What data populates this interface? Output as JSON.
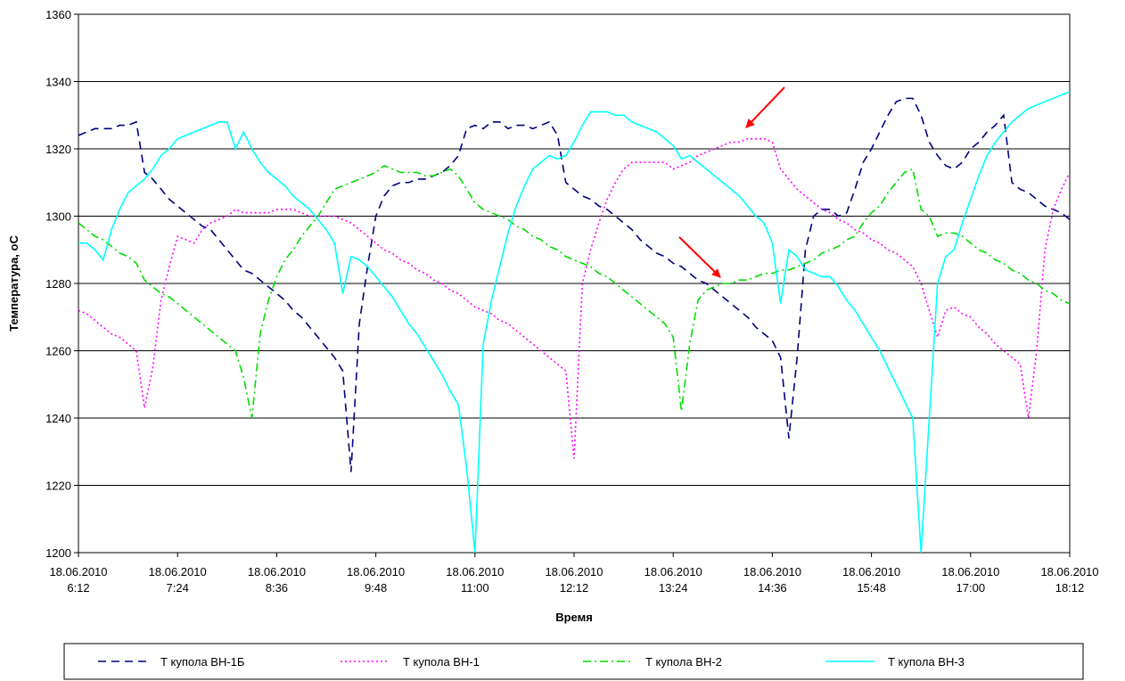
{
  "chart_data": {
    "type": "line",
    "x_label": "Время",
    "y_label": "Температура, оС",
    "x": [
      "18.06.2010 6:12",
      "18.06.2010 6:18",
      "18.06.2010 6:24",
      "18.06.2010 6:30",
      "18.06.2010 6:36",
      "18.06.2010 6:42",
      "18.06.2010 6:48",
      "18.06.2010 6:54",
      "18.06.2010 7:00",
      "18.06.2010 7:06",
      "18.06.2010 7:12",
      "18.06.2010 7:18",
      "18.06.2010 7:24",
      "18.06.2010 7:30",
      "18.06.2010 7:36",
      "18.06.2010 7:42",
      "18.06.2010 7:48",
      "18.06.2010 7:54",
      "18.06.2010 8:00",
      "18.06.2010 8:06",
      "18.06.2010 8:12",
      "18.06.2010 8:18",
      "18.06.2010 8:24",
      "18.06.2010 8:30",
      "18.06.2010 8:36",
      "18.06.2010 8:42",
      "18.06.2010 8:48",
      "18.06.2010 8:54",
      "18.06.2010 9:00",
      "18.06.2010 9:06",
      "18.06.2010 9:12",
      "18.06.2010 9:18",
      "18.06.2010 9:24",
      "18.06.2010 9:30",
      "18.06.2010 9:36",
      "18.06.2010 9:42",
      "18.06.2010 9:48",
      "18.06.2010 9:54",
      "18.06.2010 10:00",
      "18.06.2010 10:06",
      "18.06.2010 10:12",
      "18.06.2010 10:18",
      "18.06.2010 10:24",
      "18.06.2010 10:30",
      "18.06.2010 10:36",
      "18.06.2010 10:42",
      "18.06.2010 10:48",
      "18.06.2010 10:54",
      "18.06.2010 11:00",
      "18.06.2010 11:06",
      "18.06.2010 11:12",
      "18.06.2010 11:18",
      "18.06.2010 11:24",
      "18.06.2010 11:30",
      "18.06.2010 11:36",
      "18.06.2010 11:42",
      "18.06.2010 11:48",
      "18.06.2010 11:54",
      "18.06.2010 12:00",
      "18.06.2010 12:06",
      "18.06.2010 12:12",
      "18.06.2010 12:18",
      "18.06.2010 12:24",
      "18.06.2010 12:30",
      "18.06.2010 12:36",
      "18.06.2010 12:42",
      "18.06.2010 12:48",
      "18.06.2010 12:54",
      "18.06.2010 13:00",
      "18.06.2010 13:06",
      "18.06.2010 13:12",
      "18.06.2010 13:18",
      "18.06.2010 13:24",
      "18.06.2010 13:30",
      "18.06.2010 13:36",
      "18.06.2010 13:42",
      "18.06.2010 13:48",
      "18.06.2010 13:54",
      "18.06.2010 14:00",
      "18.06.2010 14:06",
      "18.06.2010 14:12",
      "18.06.2010 14:18",
      "18.06.2010 14:24",
      "18.06.2010 14:30",
      "18.06.2010 14:36",
      "18.06.2010 14:42",
      "18.06.2010 14:48",
      "18.06.2010 14:54",
      "18.06.2010 15:00",
      "18.06.2010 15:06",
      "18.06.2010 15:12",
      "18.06.2010 15:18",
      "18.06.2010 15:24",
      "18.06.2010 15:30",
      "18.06.2010 15:36",
      "18.06.2010 15:42",
      "18.06.2010 15:48",
      "18.06.2010 15:54",
      "18.06.2010 16:00",
      "18.06.2010 16:06",
      "18.06.2010 16:12",
      "18.06.2010 16:18",
      "18.06.2010 16:24",
      "18.06.2010 16:30",
      "18.06.2010 16:36",
      "18.06.2010 16:42",
      "18.06.2010 16:48",
      "18.06.2010 16:54",
      "18.06.2010 17:00",
      "18.06.2010 17:06",
      "18.06.2010 17:12",
      "18.06.2010 17:18",
      "18.06.2010 17:24",
      "18.06.2010 17:30",
      "18.06.2010 17:36",
      "18.06.2010 17:42",
      "18.06.2010 17:48",
      "18.06.2010 17:54",
      "18.06.2010 18:00",
      "18.06.2010 18:06",
      "18.06.2010 18:12"
    ],
    "xlim": [
      "18.06.2010 6:12",
      "18.06.2010 18:12"
    ],
    "xticks": [
      "18.06.2010 6:12",
      "18.06.2010 7:24",
      "18.06.2010 8:36",
      "18.06.2010 9:48",
      "18.06.2010 11:00",
      "18.06.2010 12:12",
      "18.06.2010 13:24",
      "18.06.2010 14:36",
      "18.06.2010 15:48",
      "18.06.2010 17:00",
      "18.06.2010 18:12"
    ],
    "ylim": [
      1200,
      1360
    ],
    "yticks": [
      1200,
      1220,
      1240,
      1260,
      1280,
      1300,
      1320,
      1340,
      1360
    ],
    "grid": true,
    "series": [
      {
        "name": "Т купола ВН-1Б",
        "color": "#000080",
        "style": "dashed",
        "values": [
          1324,
          1325,
          1326,
          1326,
          1326,
          1327,
          1327,
          1328,
          1313,
          1311,
          1308,
          1305,
          1303,
          1301,
          1299,
          1297,
          1296,
          1293,
          1290,
          1287,
          1284,
          1283,
          1281,
          1279,
          1277,
          1275,
          1272,
          1270,
          1267,
          1264,
          1261,
          1258,
          1254,
          1224,
          1268,
          1285,
          1300,
          1306,
          1309,
          1310,
          1310,
          1311,
          1311,
          1312,
          1313,
          1315,
          1318,
          1326,
          1327,
          1326,
          1328,
          1328,
          1326,
          1327,
          1327,
          1326,
          1327,
          1328,
          1324,
          1310,
          1308,
          1306,
          1305,
          1303,
          1302,
          1300,
          1298,
          1296,
          1293,
          1291,
          1289,
          1288,
          1286,
          1285,
          1283,
          1281,
          1280,
          1278,
          1276,
          1274,
          1272,
          1270,
          1267,
          1265,
          1263,
          1258,
          1234,
          1258,
          1290,
          1300,
          1302,
          1302,
          1300,
          1301,
          1308,
          1316,
          1320,
          1325,
          1330,
          1334,
          1335,
          1335,
          1330,
          1322,
          1318,
          1315,
          1314,
          1316,
          1320,
          1322,
          1325,
          1327,
          1330,
          1310,
          1308,
          1307,
          1305,
          1303,
          1302,
          1301,
          1299
        ]
      },
      {
        "name": "Т купола ВН-1",
        "color": "#ff00ff",
        "style": "dotted",
        "values": [
          1272,
          1271,
          1269,
          1267,
          1265,
          1264,
          1262,
          1260,
          1243,
          1255,
          1275,
          1285,
          1294,
          1293,
          1292,
          1296,
          1298,
          1299,
          1300,
          1302,
          1301,
          1301,
          1301,
          1301,
          1302,
          1302,
          1302,
          1301,
          1300,
          1300,
          1300,
          1300,
          1299,
          1298,
          1296,
          1294,
          1292,
          1290,
          1289,
          1287,
          1286,
          1284,
          1283,
          1281,
          1280,
          1278,
          1277,
          1275,
          1273,
          1272,
          1271,
          1269,
          1268,
          1266,
          1264,
          1262,
          1260,
          1258,
          1256,
          1254,
          1228,
          1280,
          1290,
          1298,
          1305,
          1310,
          1314,
          1316,
          1316,
          1316,
          1316,
          1316,
          1314,
          1315,
          1316,
          1318,
          1319,
          1320,
          1321,
          1322,
          1322,
          1323,
          1323,
          1323,
          1322,
          1314,
          1311,
          1308,
          1306,
          1304,
          1302,
          1301,
          1299,
          1298,
          1296,
          1295,
          1293,
          1292,
          1290,
          1289,
          1287,
          1285,
          1280,
          1272,
          1264,
          1272,
          1273,
          1271,
          1270,
          1267,
          1265,
          1262,
          1260,
          1258,
          1256,
          1240,
          1260,
          1290,
          1302,
          1308,
          1313
        ]
      },
      {
        "name": "Т купола ВН-2",
        "color": "#00dd00",
        "style": "dashdot",
        "values": [
          1298,
          1296,
          1294,
          1293,
          1291,
          1289,
          1288,
          1286,
          1281,
          1279,
          1277,
          1276,
          1274,
          1272,
          1270,
          1268,
          1266,
          1264,
          1262,
          1260,
          1252,
          1240,
          1265,
          1275,
          1282,
          1287,
          1290,
          1294,
          1297,
          1300,
          1304,
          1308,
          1309,
          1310,
          1311,
          1312,
          1313,
          1315,
          1314,
          1313,
          1313,
          1313,
          1312,
          1312,
          1313,
          1314,
          1312,
          1308,
          1304,
          1302,
          1301,
          1300,
          1299,
          1297,
          1296,
          1294,
          1293,
          1291,
          1290,
          1288,
          1287,
          1286,
          1285,
          1283,
          1282,
          1280,
          1278,
          1276,
          1274,
          1272,
          1270,
          1268,
          1264,
          1242,
          1262,
          1275,
          1278,
          1279,
          1280,
          1280,
          1281,
          1281,
          1282,
          1283,
          1283,
          1284,
          1284,
          1285,
          1286,
          1287,
          1289,
          1290,
          1291,
          1293,
          1294,
          1298,
          1301,
          1303,
          1307,
          1310,
          1313,
          1314,
          1302,
          1300,
          1294,
          1295,
          1295,
          1294,
          1292,
          1290,
          1289,
          1287,
          1286,
          1284,
          1283,
          1281,
          1280,
          1278,
          1277,
          1275,
          1274
        ]
      },
      {
        "name": "Т купола ВН-3",
        "color": "#00ffff",
        "style": "solid",
        "values": [
          1292,
          1292,
          1290,
          1287,
          1296,
          1302,
          1307,
          1309,
          1311,
          1314,
          1318,
          1320,
          1323,
          1324,
          1325,
          1326,
          1327,
          1328,
          1328,
          1320,
          1325,
          1320,
          1316,
          1313,
          1311,
          1309,
          1306,
          1304,
          1302,
          1299,
          1296,
          1292,
          1277,
          1288,
          1287,
          1285,
          1282,
          1279,
          1276,
          1272,
          1268,
          1265,
          1261,
          1257,
          1253,
          1248,
          1244,
          1225,
          1200,
          1262,
          1275,
          1285,
          1295,
          1303,
          1309,
          1314,
          1316,
          1318,
          1317,
          1318,
          1322,
          1327,
          1331,
          1331,
          1331,
          1330,
          1330,
          1328,
          1327,
          1326,
          1325,
          1323,
          1321,
          1317,
          1318,
          1316,
          1314,
          1312,
          1310,
          1308,
          1306,
          1303,
          1300,
          1298,
          1292,
          1274,
          1290,
          1288,
          1284,
          1283,
          1282,
          1282,
          1279,
          1275,
          1272,
          1268,
          1264,
          1260,
          1255,
          1250,
          1245,
          1240,
          1200,
          1240,
          1280,
          1288,
          1290,
          1298,
          1305,
          1312,
          1318,
          1322,
          1325,
          1328,
          1330,
          1332,
          1333,
          1334,
          1335,
          1336,
          1337
        ]
      }
    ]
  }
}
